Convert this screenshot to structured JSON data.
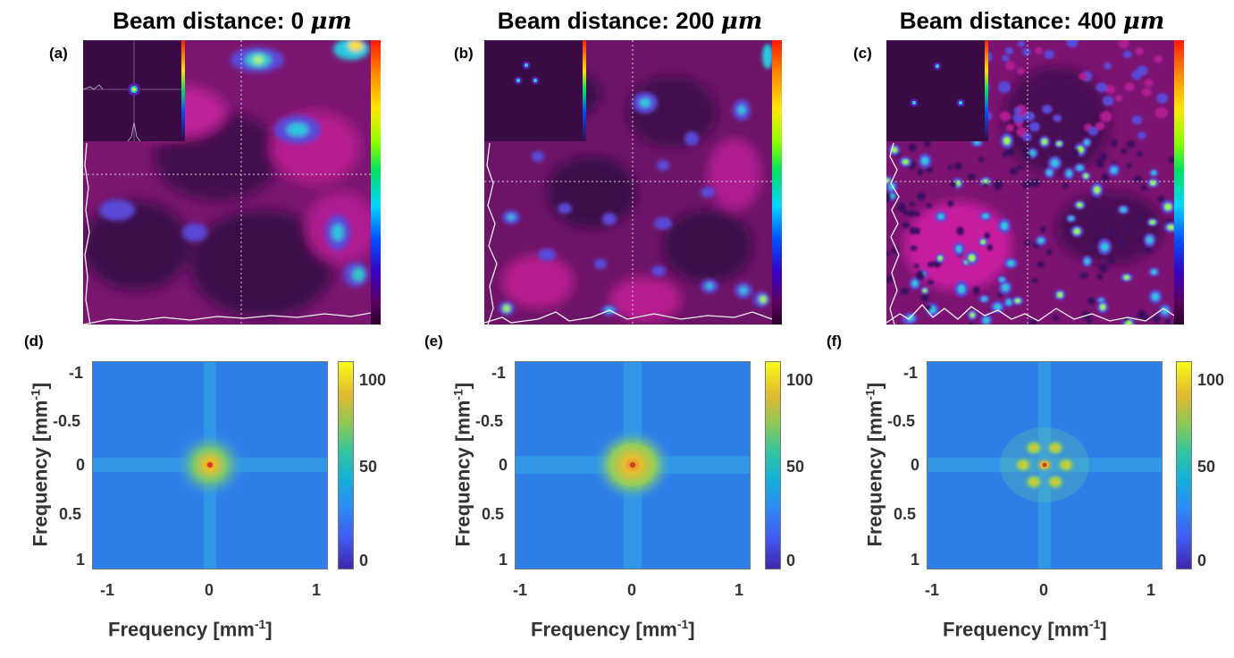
{
  "titles": [
    {
      "prefix": "Beam distance: ",
      "value": "0",
      "unit": "μm"
    },
    {
      "prefix": "Beam distance: ",
      "value": "200",
      "unit": "μm"
    },
    {
      "prefix": "Beam distance: ",
      "value": "400",
      "unit": "μm"
    }
  ],
  "panel_labels": [
    "(a)",
    "(b)",
    "(c)",
    "(d)",
    "(e)",
    "(f)"
  ],
  "axes": {
    "label_text": "Frequency [mm",
    "label_exp": "-1",
    "label_close": "]",
    "x_ticks": [
      "-1",
      "0",
      "1"
    ],
    "y_ticks": [
      "-1",
      "-0.5",
      "0",
      "0.5",
      "1"
    ]
  },
  "colorbar": {
    "ticks": [
      "100",
      "50",
      "0"
    ],
    "range": [
      0,
      110
    ],
    "colormap": "parula"
  },
  "intensity_colormap": "hsv",
  "chart_data": [
    {
      "type": "heatmap",
      "panel": "(d)",
      "xlim": [
        -1.15,
        1.15
      ],
      "ylim": [
        1.15,
        -1.15
      ],
      "x_ticks": [
        -1,
        0,
        1
      ],
      "y_ticks": [
        -1,
        -0.5,
        0,
        0.5,
        1
      ],
      "clim": [
        0,
        110
      ],
      "peaks": [
        {
          "x": 0,
          "y": 0,
          "value": 100
        }
      ]
    },
    {
      "type": "heatmap",
      "panel": "(e)",
      "xlim": [
        -1.15,
        1.15
      ],
      "ylim": [
        1.15,
        -1.15
      ],
      "x_ticks": [
        -1,
        0,
        1
      ],
      "y_ticks": [
        -1,
        -0.5,
        0,
        0.5,
        1
      ],
      "clim": [
        0,
        110
      ],
      "peaks": [
        {
          "x": 0,
          "y": 0,
          "value": 100
        }
      ]
    },
    {
      "type": "heatmap",
      "panel": "(f)",
      "xlim": [
        -1.15,
        1.15
      ],
      "ylim": [
        1.15,
        -1.15
      ],
      "x_ticks": [
        -1,
        0,
        1
      ],
      "y_ticks": [
        -1,
        -0.5,
        0,
        0.5,
        1
      ],
      "clim": [
        0,
        110
      ],
      "peaks": [
        {
          "x": 0,
          "y": 0,
          "value": 100
        },
        {
          "x": 0.1,
          "y": -0.17,
          "value": 80
        },
        {
          "x": -0.1,
          "y": -0.17,
          "value": 80
        },
        {
          "x": 0.2,
          "y": 0,
          "value": 80
        },
        {
          "x": -0.2,
          "y": 0,
          "value": 80
        },
        {
          "x": 0.1,
          "y": 0.17,
          "value": 80
        },
        {
          "x": -0.1,
          "y": 0.17,
          "value": 80
        }
      ]
    }
  ]
}
